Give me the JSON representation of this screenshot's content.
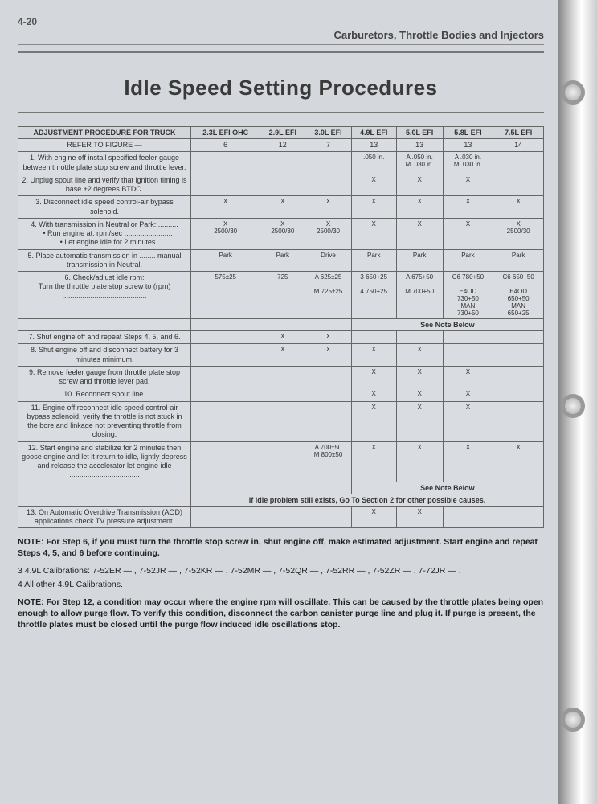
{
  "page_number": "4-20",
  "header": "Carburetors, Throttle Bodies and Injectors",
  "title": "Idle Speed Setting Procedures",
  "columns": {
    "proc_label": "ADJUSTMENT PROCEDURE FOR TRUCK",
    "c1": "2.3L EFI OHC",
    "c2": "2.9L EFI",
    "c3": "3.0L EFI",
    "c4": "4.9L EFI",
    "c5": "5.0L EFI",
    "c6": "5.8L EFI",
    "c7": "7.5L EFI"
  },
  "refer_row": {
    "label": "REFER TO FIGURE —",
    "v": [
      "6",
      "12",
      "7",
      "13",
      "13",
      "13",
      "14"
    ]
  },
  "rows": [
    {
      "n": "1.",
      "txt": "With engine off install specified feeler gauge between throttle plate stop screw and throttle lever.",
      "v": [
        "",
        "",
        "",
        ".050 in.",
        "A .050 in.<br>M .030 in.",
        "A .030 in.<br>M .030 in.",
        ""
      ]
    },
    {
      "n": "2.",
      "txt": "Unplug spout line and verify that ignition timing is base ±2 degrees BTDC.",
      "v": [
        "",
        "",
        "",
        "X",
        "X",
        "X",
        ""
      ]
    },
    {
      "n": "3.",
      "txt": "Disconnect idle speed control-air bypass solenoid.",
      "v": [
        "X",
        "X",
        "X",
        "X",
        "X",
        "X",
        "X"
      ]
    },
    {
      "n": "4.",
      "txt": "With transmission in Neutral or Park: ..........<br><span class='indent'>• Run engine at: rpm/sec ........................</span><span class='indent'>• Let engine idle for 2 minutes</span>",
      "v": [
        "X<br>2500/30",
        "X<br>2500/30",
        "X<br>2500/30",
        "X",
        "X",
        "X",
        "X<br>2500/30"
      ]
    },
    {
      "n": "5.",
      "txt": "Place automatic transmission in ........ manual transmission in Neutral.",
      "v": [
        "Park",
        "Park",
        "Drive",
        "Park",
        "Park",
        "Park",
        "Park"
      ]
    },
    {
      "n": "6.",
      "txt": "Check/adjust idle rpm:<br>Turn the throttle plate stop screw to (rpm) ..........................................",
      "v": [
        "575±25",
        "725",
        "A 625±25<br><br>M 725±25",
        "3 650+25<br><br>4 750+25",
        "A 675+50<br><br>M 700+50",
        "C6 780+50<br><br>E4OD<br>730+50<br>MAN<br>730+50",
        "C6 650+50<br><br>E4OD<br>650+50<br>MAN<br>650+25"
      ],
      "after_note": "See Note Below",
      "after_span": 4
    },
    {
      "n": "7.",
      "txt": "Shut engine off and repeat Steps 4, 5, and 6.",
      "v": [
        "",
        "X",
        "X",
        "",
        "",
        "",
        ""
      ]
    },
    {
      "n": "8.",
      "txt": "Shut engine off and disconnect battery for 3 minutes minimum.",
      "v": [
        "",
        "X",
        "X",
        "X",
        "X",
        "",
        ""
      ]
    },
    {
      "n": "9.",
      "txt": "Remove feeler gauge from throttle plate stop screw and throttle lever pad.",
      "v": [
        "",
        "",
        "",
        "X",
        "X",
        "X",
        ""
      ]
    },
    {
      "n": "10.",
      "txt": "Reconnect spout line.",
      "v": [
        "",
        "",
        "",
        "X",
        "X",
        "X",
        ""
      ]
    },
    {
      "n": "11.",
      "txt": "Engine off reconnect idle speed control-air bypass solenoid, verify the throttle is not stuck in the bore and linkage not preventing throttle from closing.",
      "v": [
        "",
        "",
        "",
        "X",
        "X",
        "X",
        ""
      ]
    },
    {
      "n": "12.",
      "txt": "Start engine and stabilize for 2 minutes then goose engine and let it return to idle, lightly depress and release the accelerator let engine idle ...................................",
      "v": [
        "",
        "",
        "A 700±50<br>M 800±50",
        "X",
        "X",
        "X",
        "X"
      ],
      "after_note": "See Note Below",
      "after_span": 4,
      "bottom_note": "If idle problem still exists, Go To Section 2 for other possible causes."
    },
    {
      "n": "13.",
      "txt": "On Automatic Overdrive Transmission (AOD) applications check TV pressure adjustment.",
      "v": [
        "",
        "",
        "",
        "X",
        "X",
        "",
        ""
      ]
    }
  ],
  "notes": {
    "n1": "NOTE: For Step 6, if you must turn the throttle stop screw in, shut engine off, make estimated adjustment. Start engine and repeat Steps 4, 5, and 6 before continuing.",
    "n2": "3 4.9L Calibrations: 7-52ER — , 7-52JR — , 7-52KR — , 7-52MR — , 7-52QR — , 7-52RR — , 7-52ZR — , 7-72JR — .",
    "n3": "4 All other 4.9L Calibrations.",
    "n4": "NOTE: For Step 12, a condition may occur where the engine rpm will oscillate. This can be caused by the throttle plates being open enough to allow purge flow. To verify this condition, disconnect the carbon canister purge line and plug it. If purge is present, the throttle plates must be closed until the purge flow induced idle oscillations stop."
  }
}
